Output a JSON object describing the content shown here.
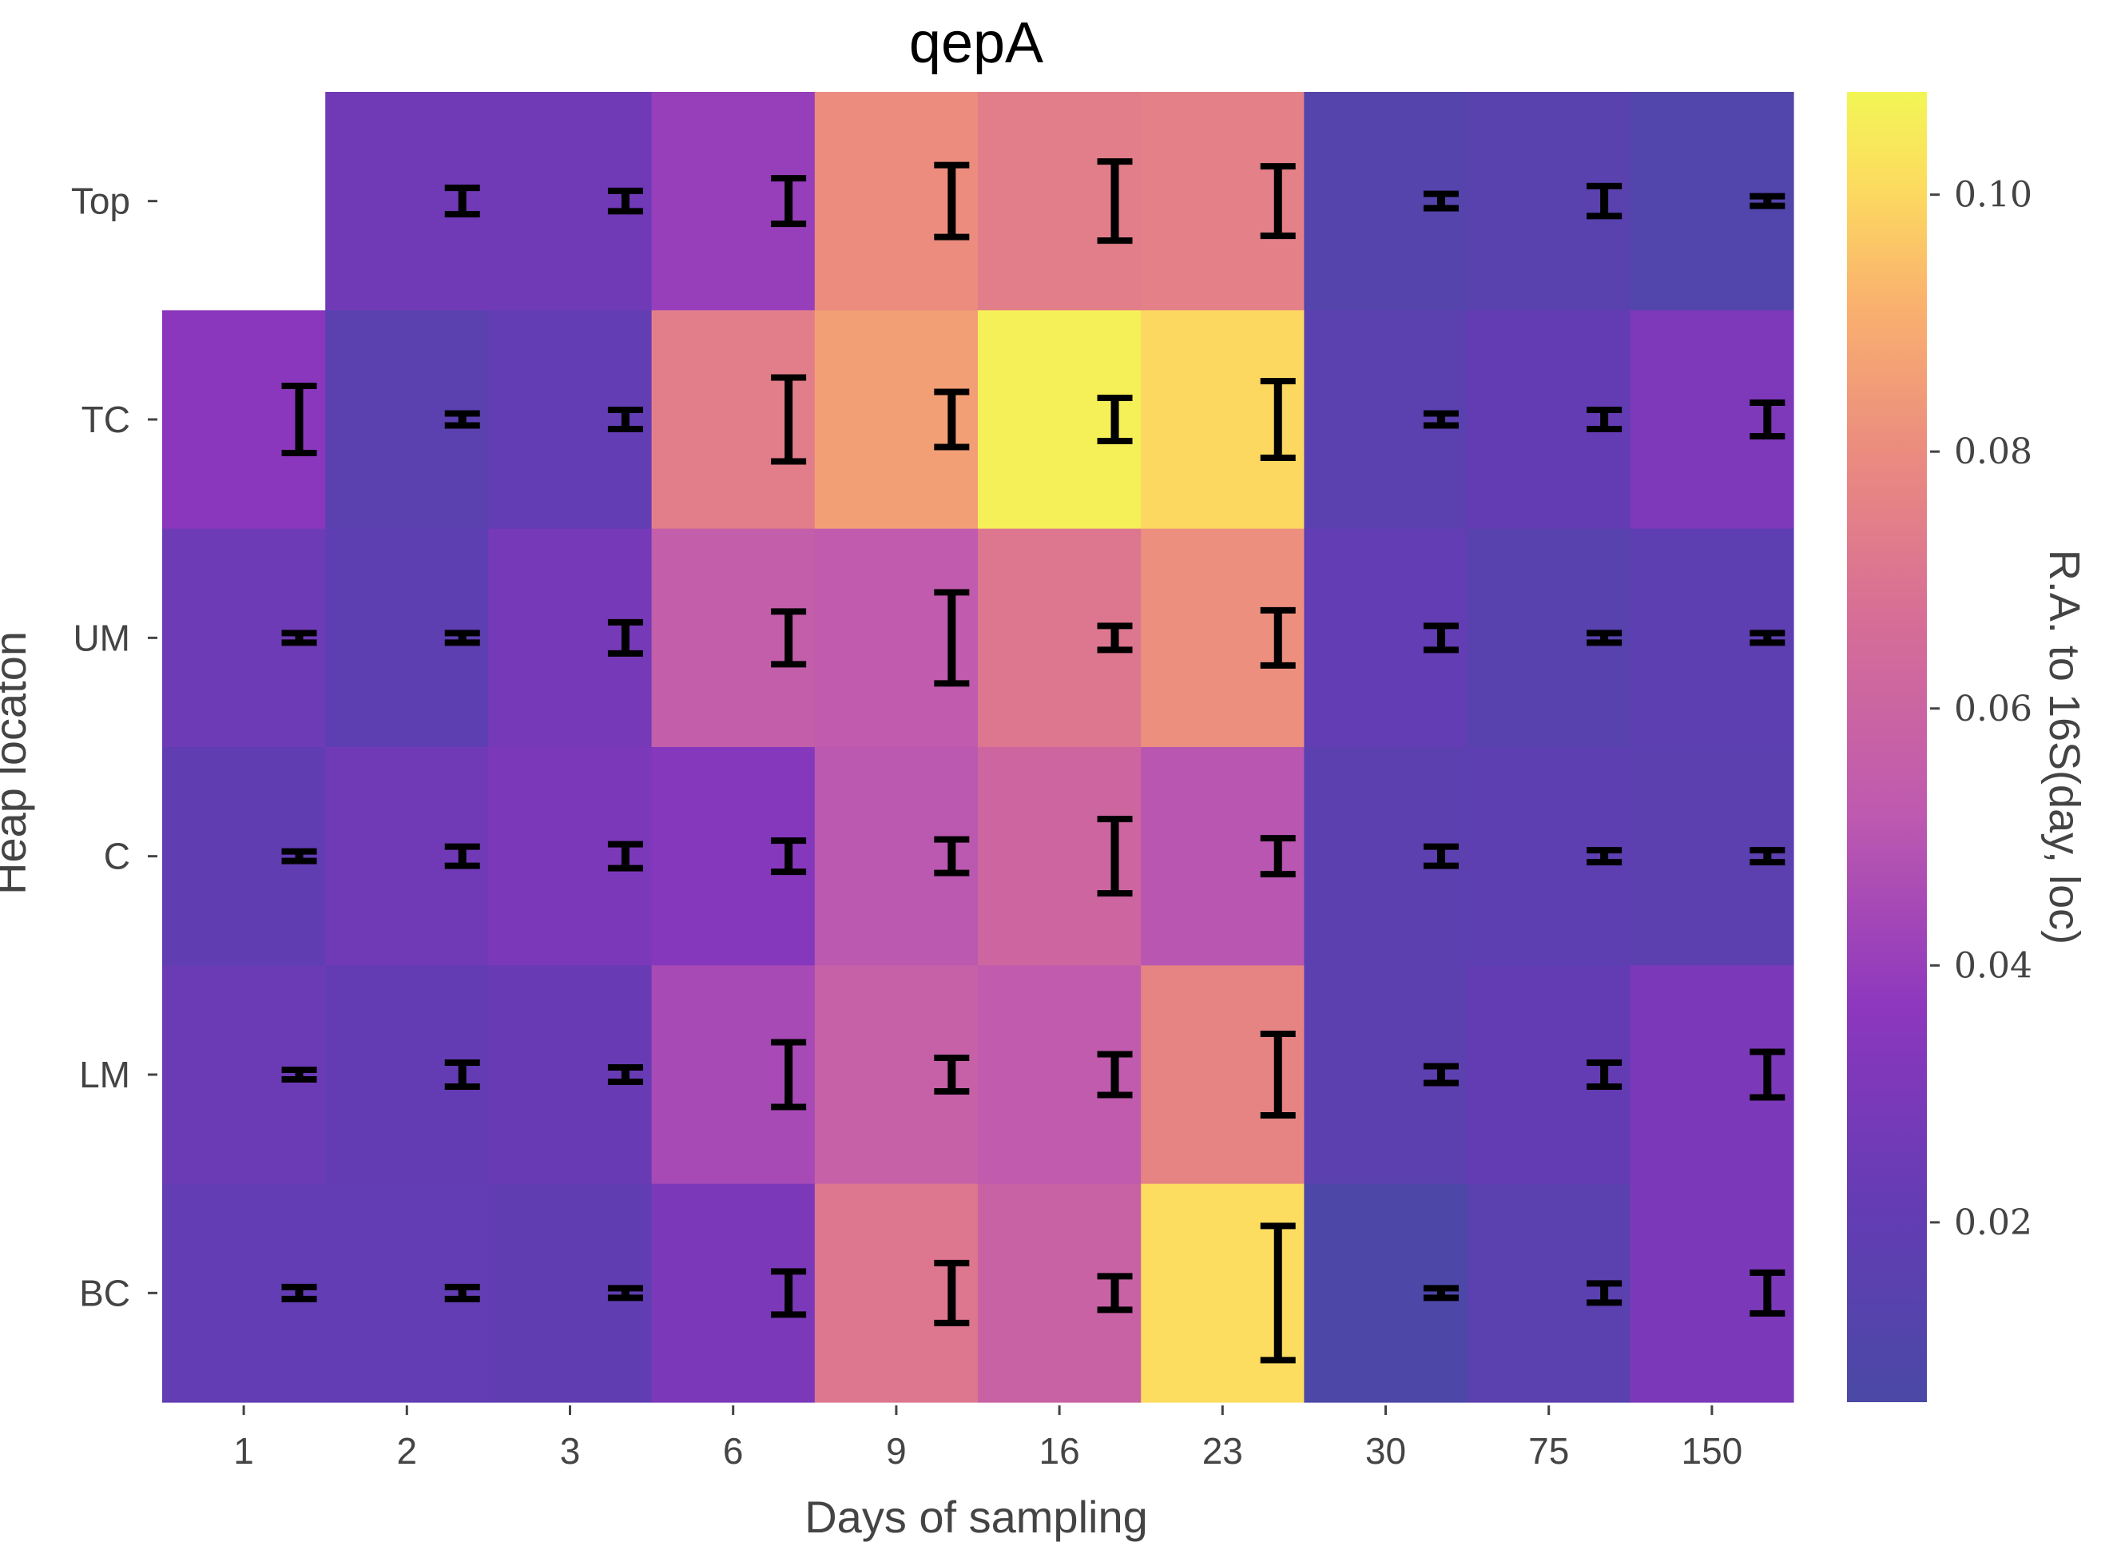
{
  "chart_data": {
    "type": "heatmap",
    "title": "qepA",
    "xlabel": "Days of sampling",
    "ylabel": "Heap locaton",
    "colorbar_label": "R.A. to 16S(day, loc)",
    "colormap": "plasma",
    "colorbar_range": [
      0.006,
      0.108
    ],
    "colorbar_ticks": [
      "0.02",
      "0.04",
      "0.06",
      "0.08",
      "0.10"
    ],
    "colorbar_tick_values": [
      0.02,
      0.04,
      0.06,
      0.08,
      0.1
    ],
    "x_categories": [
      "1",
      "2",
      "3",
      "6",
      "9",
      "16",
      "23",
      "30",
      "75",
      "150"
    ],
    "y_categories": [
      "Top",
      "TC",
      "UM",
      "C",
      "LM",
      "BC"
    ],
    "values": [
      [
        null,
        0.026,
        0.026,
        0.04,
        0.08,
        0.074,
        0.075,
        0.012,
        0.015,
        0.011
      ],
      [
        0.036,
        0.016,
        0.02,
        0.074,
        0.086,
        0.106,
        0.1,
        0.016,
        0.021,
        0.031
      ],
      [
        0.025,
        0.018,
        0.028,
        0.055,
        0.053,
        0.071,
        0.081,
        0.02,
        0.014,
        0.018
      ],
      [
        0.019,
        0.026,
        0.03,
        0.034,
        0.051,
        0.061,
        0.05,
        0.017,
        0.018,
        0.017
      ],
      [
        0.024,
        0.021,
        0.023,
        0.045,
        0.057,
        0.053,
        0.077,
        0.017,
        0.021,
        0.03
      ],
      [
        0.02,
        0.02,
        0.019,
        0.03,
        0.071,
        0.058,
        0.101,
        0.008,
        0.016,
        0.03
      ]
    ],
    "errors": [
      [
        null,
        0.0022,
        0.0017,
        0.0038,
        0.006,
        0.0066,
        0.0058,
        0.0012,
        0.0025,
        0.0008
      ],
      [
        0.0056,
        0.001,
        0.0016,
        0.007,
        0.0046,
        0.0036,
        0.0064,
        0.001,
        0.0016,
        0.0028
      ],
      [
        0.0006,
        0.0008,
        0.0026,
        0.0044,
        0.0076,
        0.002,
        0.0046,
        0.002,
        0.0006,
        0.0008
      ],
      [
        0.0008,
        0.0016,
        0.002,
        0.0026,
        0.0028,
        0.0062,
        0.003,
        0.0016,
        0.001,
        0.001
      ],
      [
        0.0008,
        0.002,
        0.0012,
        0.0054,
        0.0028,
        0.0034,
        0.0068,
        0.0014,
        0.002,
        0.0038
      ],
      [
        0.001,
        0.001,
        0.0008,
        0.0036,
        0.005,
        0.0028,
        0.0112,
        0.0006,
        0.0016,
        0.0034
      ]
    ],
    "grid": false
  }
}
